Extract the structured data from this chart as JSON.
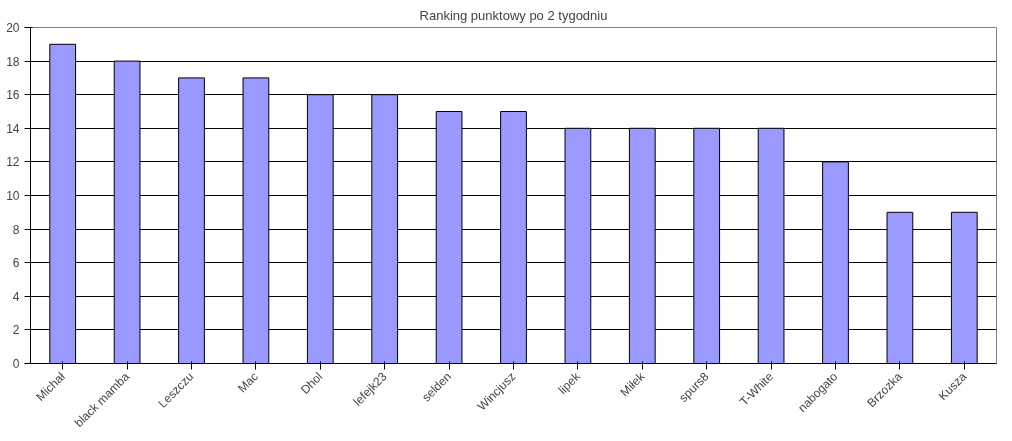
{
  "chart_data": {
    "type": "bar",
    "title": "Ranking punktowy po 2 tygodniu",
    "categories": [
      "Michał",
      "black mamba",
      "Leszczu",
      "Mac",
      "Dhol",
      "lefejk23",
      "selden",
      "Wincjusz",
      "lipek",
      "Miłek",
      "spurs8",
      "T-White",
      "nabogato",
      "Brzozka",
      "Kusza"
    ],
    "values": [
      19,
      18,
      17,
      17,
      16,
      16,
      15,
      15,
      14,
      14,
      14,
      14,
      12,
      9,
      9
    ],
    "color": "#9999ff",
    "ylim": [
      0,
      20
    ],
    "yticks": [
      0,
      2,
      4,
      6,
      8,
      10,
      12,
      14,
      16,
      18,
      20
    ],
    "grid": "y"
  }
}
